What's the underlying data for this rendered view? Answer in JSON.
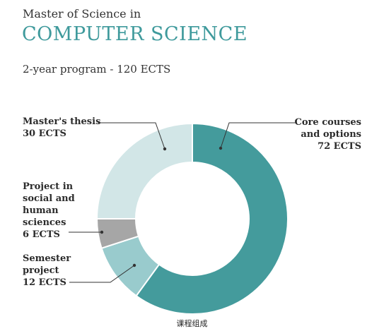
{
  "header": {
    "pre_title": "Master of Science in",
    "title": "COMPUTER SCIENCE",
    "subtitle": "2-year program - 120 ECTS"
  },
  "caption": "课程组成",
  "colors": {
    "title": "#3f9a9c",
    "core": "#449b9c",
    "semester": "#99cbcd",
    "shs": "#a6a6a6",
    "thesis": "#d2e6e7",
    "separator": "#ffffff"
  },
  "chart_data": {
    "type": "pie",
    "variant": "donut",
    "unit": "ECTS",
    "total": 120,
    "slices": [
      {
        "label_lines": [
          "Core courses",
          "and options",
          "72 ECTS"
        ],
        "value": 72,
        "color": "#449b9c",
        "label_side": "right"
      },
      {
        "label_lines": [
          "Semester",
          "project",
          "12 ECTS"
        ],
        "value": 12,
        "color": "#99cbcd",
        "label_side": "left"
      },
      {
        "label_lines": [
          "Project in",
          "social and",
          "human",
          "sciences",
          "6 ECTS"
        ],
        "value": 6,
        "color": "#a6a6a6",
        "label_side": "left"
      },
      {
        "label_lines": [
          "Master's thesis",
          "30 ECTS"
        ],
        "value": 30,
        "color": "#d2e6e7",
        "label_side": "left"
      }
    ]
  }
}
